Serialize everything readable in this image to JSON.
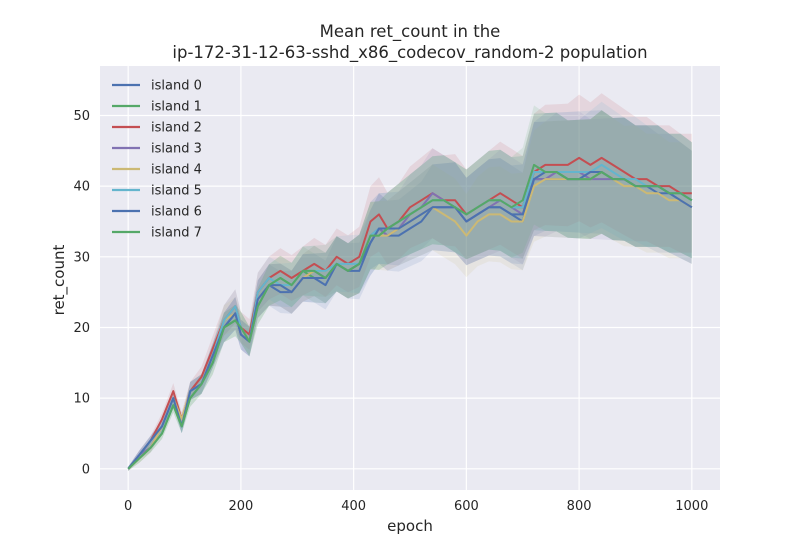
{
  "chart_data": {
    "type": "line",
    "title_line1": "Mean ret_count in the",
    "title_line2": "ip-172-31-12-63-sshd_x86_codecov_random-2 population",
    "xlabel": "epoch",
    "ylabel": "ret_count",
    "xlim": [
      -50,
      1050
    ],
    "ylim": [
      -3,
      57
    ],
    "xticks": [
      0,
      200,
      400,
      600,
      800,
      1000
    ],
    "yticks": [
      0,
      10,
      20,
      30,
      40,
      50
    ],
    "grid": true,
    "legend_position": "top-left",
    "background": "#eaeaf2",
    "band_halfwidth_pct": [
      0,
      6,
      8,
      10,
      12,
      14,
      16,
      18,
      19,
      20,
      20
    ],
    "series": [
      {
        "name": "island 0",
        "color": "#4c72b0",
        "x": [
          0,
          20,
          40,
          60,
          80,
          95,
          110,
          130,
          150,
          170,
          190,
          200,
          215,
          230,
          250,
          270,
          290,
          310,
          330,
          350,
          370,
          390,
          410,
          430,
          445,
          460,
          480,
          500,
          520,
          540,
          560,
          580,
          600,
          620,
          640,
          660,
          680,
          700,
          720,
          740,
          760,
          780,
          800,
          820,
          840,
          860,
          880,
          900,
          920,
          940,
          960,
          980,
          1000
        ],
        "y": [
          0,
          2,
          4,
          6,
          10,
          6,
          11,
          12,
          16,
          20,
          22,
          19,
          18,
          24,
          26,
          25,
          25,
          27,
          27,
          26,
          29,
          28,
          28,
          32,
          34,
          33,
          33,
          34,
          35,
          37,
          37,
          37,
          35,
          36,
          37,
          37,
          36,
          35,
          41,
          41,
          41,
          41,
          41,
          41,
          42,
          41,
          41,
          40,
          40,
          39,
          39,
          38,
          37
        ]
      },
      {
        "name": "island 1",
        "color": "#55a868",
        "x": [
          0,
          20,
          40,
          60,
          80,
          95,
          110,
          130,
          150,
          170,
          190,
          200,
          215,
          230,
          250,
          270,
          290,
          310,
          330,
          350,
          370,
          390,
          410,
          430,
          445,
          460,
          480,
          500,
          520,
          540,
          560,
          580,
          600,
          620,
          640,
          660,
          680,
          700,
          720,
          740,
          760,
          780,
          800,
          820,
          840,
          860,
          880,
          900,
          920,
          940,
          960,
          980,
          1000
        ],
        "y": [
          0,
          1.5,
          3,
          5,
          9,
          6,
          10,
          12,
          15,
          20,
          21,
          20,
          18,
          23,
          26,
          27,
          26,
          28,
          27,
          27,
          29,
          28,
          29,
          33,
          33,
          34,
          35,
          36,
          37,
          38,
          38,
          37,
          36,
          37,
          38,
          38,
          37,
          37,
          42,
          42,
          42,
          41,
          41,
          41,
          42,
          41,
          41,
          40,
          40,
          40,
          39,
          39,
          38
        ]
      },
      {
        "name": "island 2",
        "color": "#c44e52",
        "x": [
          0,
          20,
          40,
          60,
          80,
          95,
          110,
          130,
          150,
          170,
          190,
          200,
          215,
          230,
          250,
          270,
          290,
          310,
          330,
          350,
          370,
          390,
          410,
          430,
          445,
          460,
          480,
          500,
          520,
          540,
          560,
          580,
          600,
          620,
          640,
          660,
          680,
          700,
          720,
          740,
          760,
          780,
          800,
          820,
          840,
          860,
          880,
          900,
          920,
          940,
          960,
          980,
          1000
        ],
        "y": [
          0,
          2,
          4,
          7,
          11,
          7,
          11,
          13,
          17,
          21,
          23,
          20,
          19,
          25,
          27,
          28,
          27,
          28,
          29,
          28,
          30,
          29,
          30,
          35,
          36,
          34,
          35,
          37,
          38,
          39,
          38,
          38,
          36,
          37,
          38,
          39,
          38,
          37,
          42,
          43,
          43,
          43,
          44,
          43,
          44,
          43,
          42,
          41,
          41,
          40,
          40,
          39,
          39
        ]
      },
      {
        "name": "island 3",
        "color": "#8172b2",
        "x": [
          0,
          20,
          40,
          60,
          80,
          95,
          110,
          130,
          150,
          170,
          190,
          200,
          215,
          230,
          250,
          270,
          290,
          310,
          330,
          350,
          370,
          390,
          410,
          430,
          445,
          460,
          480,
          500,
          520,
          540,
          560,
          580,
          600,
          620,
          640,
          660,
          680,
          700,
          720,
          740,
          760,
          780,
          800,
          820,
          840,
          860,
          880,
          900,
          920,
          940,
          960,
          980,
          1000
        ],
        "y": [
          0,
          2,
          3,
          6,
          10,
          6,
          11,
          12,
          16,
          20,
          22,
          19,
          18,
          24,
          26,
          26,
          25,
          27,
          28,
          27,
          29,
          28,
          29,
          33,
          34,
          33,
          34,
          36,
          37,
          39,
          38,
          37,
          35,
          36,
          37,
          38,
          37,
          36,
          41,
          41,
          42,
          42,
          42,
          41,
          41,
          41,
          41,
          40,
          40,
          40,
          39,
          39,
          38
        ]
      },
      {
        "name": "island 4",
        "color": "#ccb974",
        "x": [
          0,
          20,
          40,
          60,
          80,
          95,
          110,
          130,
          150,
          170,
          190,
          200,
          215,
          230,
          250,
          270,
          290,
          310,
          330,
          350,
          370,
          390,
          410,
          430,
          445,
          460,
          480,
          500,
          520,
          540,
          560,
          580,
          600,
          620,
          640,
          660,
          680,
          700,
          720,
          740,
          760,
          780,
          800,
          820,
          840,
          860,
          880,
          900,
          920,
          940,
          960,
          980,
          1000
        ],
        "y": [
          0,
          1.5,
          3,
          6,
          10,
          7,
          11,
          12,
          16,
          21,
          22,
          20,
          18,
          24,
          26,
          26,
          25,
          27,
          28,
          28,
          29,
          28,
          29,
          33,
          33,
          33,
          34,
          35,
          36,
          37,
          36,
          35,
          33,
          35,
          36,
          36,
          35,
          35,
          40,
          41,
          41,
          41,
          41,
          41,
          42,
          41,
          40,
          40,
          39,
          39,
          38,
          38,
          37
        ]
      },
      {
        "name": "island 5",
        "color": "#64b5cd",
        "x": [
          0,
          20,
          40,
          60,
          80,
          95,
          110,
          130,
          150,
          170,
          190,
          200,
          215,
          230,
          250,
          270,
          290,
          310,
          330,
          350,
          370,
          390,
          410,
          430,
          445,
          460,
          480,
          500,
          520,
          540,
          560,
          580,
          600,
          620,
          640,
          660,
          680,
          700,
          720,
          740,
          760,
          780,
          800,
          820,
          840,
          860,
          880,
          900,
          920,
          940,
          960,
          980,
          1000
        ],
        "y": [
          0,
          2,
          4,
          6,
          10,
          6,
          11,
          12,
          16,
          21,
          23,
          20,
          18,
          25,
          27,
          26,
          26,
          28,
          28,
          28,
          29,
          29,
          29,
          33,
          34,
          34,
          35,
          36,
          37,
          38,
          38,
          37,
          36,
          37,
          38,
          38,
          37,
          37,
          42,
          42,
          42,
          42,
          42,
          42,
          43,
          42,
          41,
          41,
          40,
          40,
          39,
          39,
          38
        ]
      },
      {
        "name": "island 6",
        "color": "#4c72b0",
        "x": [
          0,
          20,
          40,
          60,
          80,
          95,
          110,
          130,
          150,
          170,
          190,
          200,
          215,
          230,
          250,
          270,
          290,
          310,
          330,
          350,
          370,
          390,
          410,
          430,
          445,
          460,
          480,
          500,
          520,
          540,
          560,
          580,
          600,
          620,
          640,
          660,
          680,
          700,
          720,
          740,
          760,
          780,
          800,
          820,
          840,
          860,
          880,
          900,
          920,
          940,
          960,
          980,
          1000
        ],
        "y": [
          0,
          2,
          4,
          6,
          10,
          6,
          11,
          12,
          16,
          20,
          22,
          19,
          18,
          24,
          26,
          26,
          25,
          27,
          27,
          27,
          29,
          28,
          29,
          32,
          34,
          34,
          34,
          35,
          36,
          37,
          37,
          37,
          35,
          36,
          37,
          37,
          36,
          36,
          41,
          42,
          42,
          41,
          41,
          42,
          42,
          41,
          41,
          40,
          40,
          40,
          39,
          38,
          37
        ]
      },
      {
        "name": "island 7",
        "color": "#55a868",
        "x": [
          0,
          20,
          40,
          60,
          80,
          95,
          110,
          130,
          150,
          170,
          190,
          200,
          215,
          230,
          250,
          270,
          290,
          310,
          330,
          350,
          370,
          390,
          410,
          430,
          445,
          460,
          480,
          500,
          520,
          540,
          560,
          580,
          600,
          620,
          640,
          660,
          680,
          700,
          720,
          740,
          760,
          780,
          800,
          820,
          840,
          860,
          880,
          900,
          920,
          940,
          960,
          980,
          1000
        ],
        "y": [
          0,
          1.5,
          3,
          5,
          9,
          6,
          10,
          12,
          15,
          20,
          21,
          20,
          18,
          23,
          26,
          27,
          26,
          28,
          28,
          27,
          29,
          28,
          29,
          33,
          33,
          34,
          35,
          36,
          37,
          38,
          38,
          37,
          36,
          37,
          38,
          38,
          37,
          38,
          43,
          42,
          42,
          41,
          41,
          41,
          42,
          41,
          41,
          40,
          40,
          40,
          39,
          39,
          38
        ]
      }
    ]
  }
}
